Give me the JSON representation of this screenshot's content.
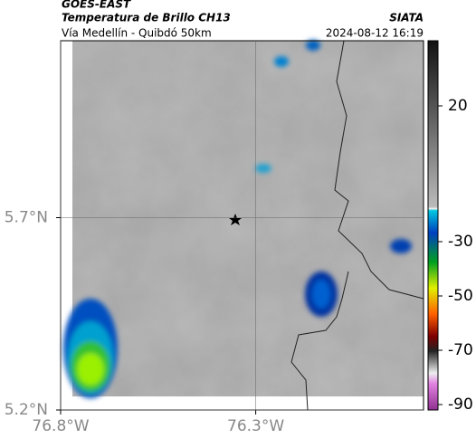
{
  "header": {
    "source": "GOES-EAST",
    "title": "Temperatura de Brillo CH13",
    "organization": "SIATA",
    "subtitle": "Vía Medellín - Quibdó 50km",
    "datetime": "2024-08-12 16:19"
  },
  "map": {
    "xlim": [
      -76.8,
      -75.87
    ],
    "ylim": [
      5.2,
      6.16
    ],
    "xticks": [
      {
        "value": -76.8,
        "label": "76.8°W"
      },
      {
        "value": -76.3,
        "label": "76.3°W"
      }
    ],
    "yticks": [
      {
        "value": 5.2,
        "label": "5.2°N"
      },
      {
        "value": 5.7,
        "label": "5.7°N"
      }
    ],
    "colorbar": {
      "lim": [
        -92,
        44
      ],
      "ticks": [
        20,
        -30,
        -50,
        -70,
        -90
      ]
    }
  }
}
